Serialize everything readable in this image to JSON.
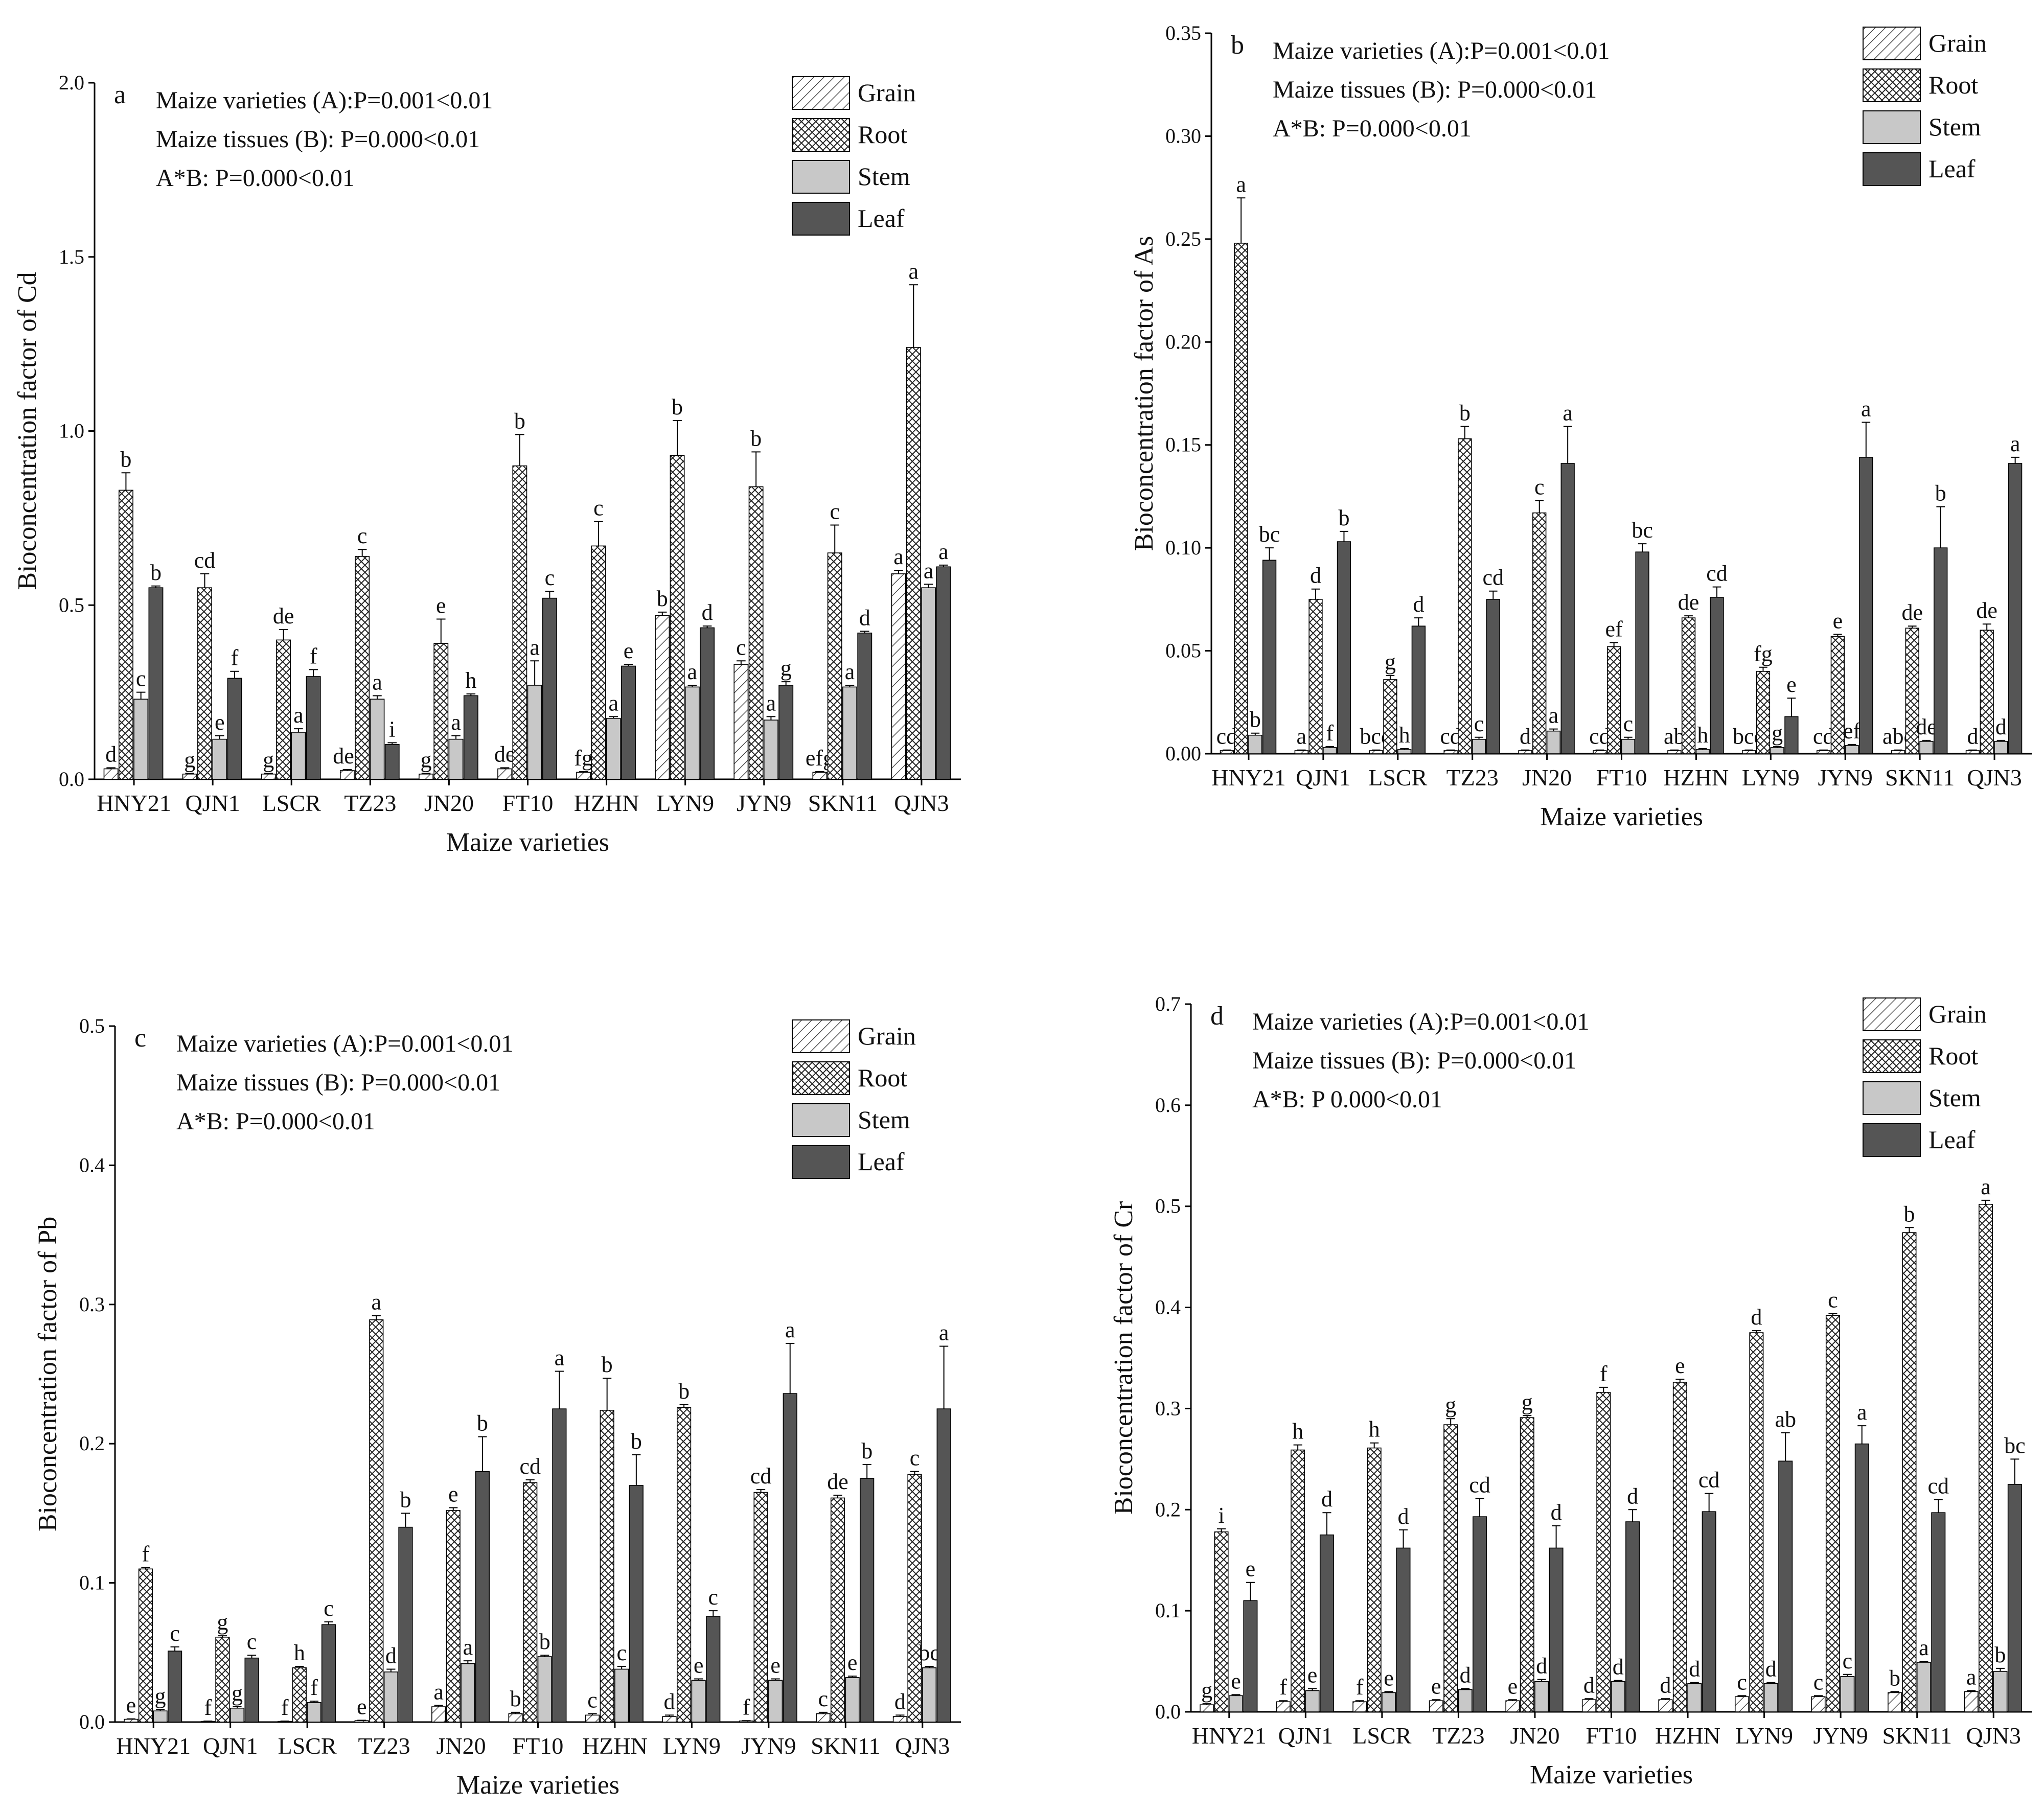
{
  "chart_data": [
    {
      "type": "bar",
      "panel_label": "a",
      "ylabel": "Bioconcentration factor of Cd",
      "xlabel": "Maize varieties",
      "ylim": [
        0,
        2.0
      ],
      "yticks": [
        "0.0",
        "0.5",
        "1.0",
        "1.5",
        "2.0"
      ],
      "tick_values": [
        0,
        0.5,
        1.0,
        1.5,
        2.0
      ],
      "stats": [
        "Maize varieties (A):P=0.001<0.01",
        "Maize tissues (B): P=0.000<0.01",
        "A*B: P=0.000<0.01"
      ],
      "categories": [
        "HNY21",
        "QJN1",
        "LSCR",
        "TZ23",
        "JN20",
        "FT10",
        "HZHN",
        "LYN9",
        "JYN9",
        "SKN11",
        "QJN3"
      ],
      "legend_position": "top-right",
      "series": [
        {
          "name": "Grain",
          "values": [
            0.03,
            0.015,
            0.015,
            0.025,
            0.015,
            0.03,
            0.02,
            0.47,
            0.33,
            0.02,
            0.59
          ],
          "errors": [
            0.003,
            0.002,
            0.002,
            0.003,
            0.002,
            0.003,
            0.002,
            0.01,
            0.01,
            0.002,
            0.01
          ],
          "letters": [
            "d",
            "g",
            "g",
            "def",
            "g",
            "de",
            "fg",
            "b",
            "c",
            "efg",
            "a"
          ]
        },
        {
          "name": "Root",
          "values": [
            0.83,
            0.55,
            0.4,
            0.64,
            0.39,
            0.9,
            0.67,
            0.93,
            0.84,
            0.65,
            1.24
          ],
          "errors": [
            0.05,
            0.04,
            0.03,
            0.02,
            0.07,
            0.09,
            0.07,
            0.1,
            0.1,
            0.08,
            0.18
          ],
          "letters": [
            "b",
            "cd",
            "de",
            "c",
            "e",
            "b",
            "c",
            "b",
            "b",
            "c",
            "a"
          ]
        },
        {
          "name": "Stem",
          "values": [
            0.23,
            0.115,
            0.135,
            0.23,
            0.115,
            0.27,
            0.175,
            0.265,
            0.17,
            0.265,
            0.55
          ],
          "errors": [
            0.02,
            0.01,
            0.01,
            0.01,
            0.01,
            0.07,
            0.005,
            0.005,
            0.01,
            0.005,
            0.01
          ],
          "letters": [
            "c",
            "e",
            "a",
            "a",
            "a",
            "a",
            "a",
            "a",
            "a",
            "a",
            "a"
          ]
        },
        {
          "name": "Leaf",
          "values": [
            0.55,
            0.29,
            0.295,
            0.1,
            0.24,
            0.52,
            0.325,
            0.435,
            0.27,
            0.42,
            0.61
          ],
          "errors": [
            0.005,
            0.02,
            0.02,
            0.005,
            0.005,
            0.02,
            0.005,
            0.005,
            0.01,
            0.005,
            0.005
          ],
          "letters": [
            "b",
            "f",
            "f",
            "i",
            "h",
            "c",
            "e",
            "d",
            "g",
            "d",
            "a"
          ]
        }
      ]
    },
    {
      "type": "bar",
      "panel_label": "b",
      "ylabel": "Bioconcentration factor of As",
      "xlabel": "Maize varieties",
      "ylim": [
        0,
        0.35
      ],
      "yticks": [
        "0.00",
        "0.05",
        "0.10",
        "0.15",
        "0.20",
        "0.25",
        "0.30",
        "0.35"
      ],
      "tick_values": [
        0,
        0.05,
        0.1,
        0.15,
        0.2,
        0.25,
        0.3,
        0.35
      ],
      "stats": [
        "Maize varieties (A):P=0.001<0.01",
        "Maize tissues (B): P=0.000<0.01",
        "A*B: P=0.000<0.01"
      ],
      "categories": [
        "HNY21",
        "QJN1",
        "LSCR",
        "TZ23",
        "JN20",
        "FT10",
        "HZHN",
        "LYN9",
        "JYN9",
        "SKN11",
        "QJN3"
      ],
      "legend_position": "top-right",
      "series": [
        {
          "name": "Grain",
          "values": [
            0.0015,
            0.0015,
            0.0015,
            0.0015,
            0.0015,
            0.0015,
            0.0015,
            0.0015,
            0.0015,
            0.0015,
            0.0015
          ],
          "errors": [
            0.0003,
            0.0003,
            0.0003,
            0.0003,
            0.0003,
            0.0003,
            0.0003,
            0.0003,
            0.0003,
            0.0003,
            0.0003
          ],
          "letters": [
            "cd",
            "a",
            "bcd",
            "cd",
            "d",
            "cd",
            "ab",
            "bcd",
            "cd",
            "abc",
            "d"
          ]
        },
        {
          "name": "Root",
          "values": [
            0.248,
            0.075,
            0.036,
            0.153,
            0.117,
            0.052,
            0.066,
            0.04,
            0.057,
            0.061,
            0.06
          ],
          "errors": [
            0.022,
            0.005,
            0.002,
            0.006,
            0.006,
            0.002,
            0.001,
            0.002,
            0.001,
            0.001,
            0.003
          ],
          "letters": [
            "a",
            "d",
            "g",
            "b",
            "c",
            "ef",
            "de",
            "fg",
            "e",
            "de",
            "de"
          ]
        },
        {
          "name": "Stem",
          "values": [
            0.009,
            0.003,
            0.002,
            0.007,
            0.011,
            0.007,
            0.002,
            0.003,
            0.004,
            0.006,
            0.006
          ],
          "errors": [
            0.001,
            0.0005,
            0.0005,
            0.001,
            0.001,
            0.001,
            0.0005,
            0.0005,
            0.0005,
            0.0005,
            0.0005
          ],
          "letters": [
            "b",
            "f",
            "h",
            "c",
            "a",
            "c",
            "h",
            "g",
            "ef",
            "de",
            "d"
          ]
        },
        {
          "name": "Leaf",
          "values": [
            0.094,
            0.103,
            0.062,
            0.075,
            0.141,
            0.098,
            0.076,
            0.018,
            0.144,
            0.1,
            0.141
          ],
          "errors": [
            0.006,
            0.005,
            0.004,
            0.004,
            0.018,
            0.004,
            0.005,
            0.009,
            0.017,
            0.02,
            0.003
          ],
          "letters": [
            "bc",
            "b",
            "d",
            "cd",
            "a",
            "bc",
            "cd",
            "e",
            "a",
            "b",
            "a"
          ]
        }
      ]
    },
    {
      "type": "bar",
      "panel_label": "c",
      "ylabel": "Bioconcentration factor of Pb",
      "xlabel": "Maize varieties",
      "ylim": [
        0,
        0.5
      ],
      "yticks": [
        "0.0",
        "0.1",
        "0.2",
        "0.3",
        "0.4",
        "0.5"
      ],
      "tick_values": [
        0,
        0.1,
        0.2,
        0.3,
        0.4,
        0.5
      ],
      "stats": [
        "Maize varieties (A):P=0.001<0.01",
        "Maize tissues (B): P=0.000<0.01",
        "A*B: P=0.000<0.01"
      ],
      "categories": [
        "HNY21",
        "QJN1",
        "LSCR",
        "TZ23",
        "JN20",
        "FT10",
        "HZHN",
        "LYN9",
        "JYN9",
        "SKN11",
        "QJN3"
      ],
      "legend_position": "top-right",
      "series": [
        {
          "name": "Grain",
          "values": [
            0.002,
            0.0005,
            0.0005,
            0.001,
            0.011,
            0.006,
            0.005,
            0.004,
            0.0008,
            0.006,
            0.004
          ],
          "errors": [
            0.0003,
            0.0002,
            0.0002,
            0.0003,
            0.001,
            0.001,
            0.001,
            0.001,
            0.0002,
            0.001,
            0.001
          ],
          "letters": [
            "e",
            "f",
            "f",
            "e",
            "a",
            "b",
            "c",
            "d",
            "f",
            "c",
            "d"
          ]
        },
        {
          "name": "Root",
          "values": [
            0.11,
            0.061,
            0.039,
            0.289,
            0.152,
            0.172,
            0.224,
            0.226,
            0.165,
            0.161,
            0.178
          ],
          "errors": [
            0.001,
            0.001,
            0.001,
            0.003,
            0.002,
            0.002,
            0.023,
            0.002,
            0.002,
            0.002,
            0.002
          ],
          "letters": [
            "f",
            "g",
            "h",
            "a",
            "e",
            "cd",
            "b",
            "b",
            "cd",
            "de",
            "c"
          ]
        },
        {
          "name": "Stem",
          "values": [
            0.008,
            0.01,
            0.014,
            0.036,
            0.042,
            0.047,
            0.038,
            0.03,
            0.03,
            0.032,
            0.039
          ],
          "errors": [
            0.001,
            0.001,
            0.001,
            0.002,
            0.002,
            0.001,
            0.002,
            0.001,
            0.001,
            0.001,
            0.001
          ],
          "letters": [
            "g",
            "g",
            "f",
            "d",
            "a",
            "b",
            "c",
            "e",
            "e",
            "e",
            "bc"
          ]
        },
        {
          "name": "Leaf",
          "values": [
            0.051,
            0.046,
            0.07,
            0.14,
            0.18,
            0.225,
            0.17,
            0.076,
            0.236,
            0.175,
            0.225
          ],
          "errors": [
            0.003,
            0.002,
            0.002,
            0.01,
            0.025,
            0.027,
            0.022,
            0.004,
            0.036,
            0.01,
            0.045
          ],
          "letters": [
            "c",
            "c",
            "c",
            "b",
            "b",
            "a",
            "b",
            "c",
            "a",
            "b",
            "a"
          ]
        }
      ]
    },
    {
      "type": "bar",
      "panel_label": "d",
      "ylabel": "Bioconcentration factor of Cr",
      "xlabel": "Maize varieties",
      "ylim": [
        0,
        0.7
      ],
      "yticks": [
        "0.0",
        "0.1",
        "0.2",
        "0.3",
        "0.4",
        "0.5",
        "0.6",
        "0.7"
      ],
      "tick_values": [
        0,
        0.1,
        0.2,
        0.3,
        0.4,
        0.5,
        0.6,
        0.7
      ],
      "stats": [
        "Maize varieties (A):P=0.001<0.01",
        "Maize tissues (B): P=0.000<0.01",
        "A*B: P  0.000<0.01"
      ],
      "categories": [
        "HNY21",
        "QJN1",
        "LSCR",
        "TZ23",
        "JN20",
        "FT10",
        "HZHN",
        "LYN9",
        "JYN9",
        "SKN11",
        "QJN3"
      ],
      "legend_position": "top-right",
      "series": [
        {
          "name": "Grain",
          "values": [
            0.007,
            0.01,
            0.01,
            0.011,
            0.011,
            0.012,
            0.012,
            0.015,
            0.015,
            0.019,
            0.02
          ],
          "errors": [
            0.001,
            0.001,
            0.001,
            0.001,
            0.001,
            0.001,
            0.001,
            0.001,
            0.001,
            0.001,
            0.001
          ],
          "letters": [
            "g",
            "f",
            "f",
            "e",
            "e",
            "d",
            "d",
            "c",
            "c",
            "b",
            "a"
          ]
        },
        {
          "name": "Root",
          "values": [
            0.178,
            0.259,
            0.261,
            0.284,
            0.291,
            0.316,
            0.326,
            0.375,
            0.392,
            0.474,
            0.502
          ],
          "errors": [
            0.003,
            0.005,
            0.005,
            0.006,
            0.002,
            0.005,
            0.003,
            0.002,
            0.002,
            0.005,
            0.004
          ],
          "letters": [
            "i",
            "h",
            "h",
            "g",
            "g",
            "f",
            "e",
            "d",
            "c",
            "b",
            "a"
          ]
        },
        {
          "name": "Stem",
          "values": [
            0.016,
            0.021,
            0.019,
            0.022,
            0.03,
            0.03,
            0.028,
            0.028,
            0.035,
            0.049,
            0.04
          ],
          "errors": [
            0.001,
            0.002,
            0.001,
            0.001,
            0.002,
            0.001,
            0.001,
            0.001,
            0.002,
            0.001,
            0.003
          ],
          "letters": [
            "e",
            "e",
            "e",
            "d",
            "d",
            "d",
            "d",
            "d",
            "c",
            "a",
            "b"
          ]
        },
        {
          "name": "Leaf",
          "values": [
            0.11,
            0.175,
            0.162,
            0.193,
            0.162,
            0.188,
            0.198,
            0.248,
            0.265,
            0.197,
            0.225
          ],
          "errors": [
            0.018,
            0.022,
            0.018,
            0.018,
            0.022,
            0.012,
            0.018,
            0.028,
            0.018,
            0.013,
            0.025
          ],
          "letters": [
            "e",
            "d",
            "d",
            "cd",
            "d",
            "d",
            "cd",
            "ab",
            "a",
            "cd",
            "bc"
          ]
        }
      ]
    }
  ]
}
